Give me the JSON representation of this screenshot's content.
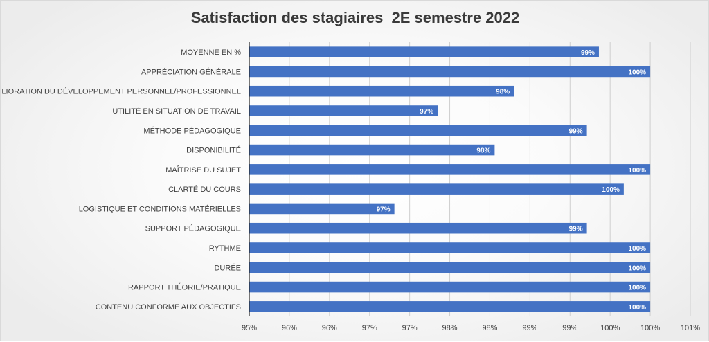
{
  "chart_data": {
    "type": "bar",
    "orientation": "horizontal",
    "title": "Satisfaction des stagiaires  2E semestre 2022",
    "xlabel": "",
    "ylabel": "",
    "xlim": [
      0.95,
      1.0
    ],
    "x_ticks": [
      0.95,
      0.955,
      0.96,
      0.965,
      0.97,
      0.975,
      0.98,
      0.985,
      0.99,
      0.995,
      1.0,
      1.005
    ],
    "x_tick_labels": [
      "95%",
      "96%",
      "96%",
      "97%",
      "97%",
      "98%",
      "98%",
      "99%",
      "99%",
      "100%",
      "100%",
      "101%"
    ],
    "grid": true,
    "legend": "none",
    "bar_color": "#4472c4",
    "categories": [
      "MOYENNE EN %",
      "APPRÉCIATION GÉNÉRALE",
      "AMÉLIORATION DU DÉVELOPPEMENT PERSONNEL/PROFESSIONNEL",
      "UTILITÉ EN SITUATION DE TRAVAIL",
      "MÉTHODE PÉDAGOGIQUE",
      "DISPONIBILITÉ",
      "MAÎTRISE DU SUJET",
      "CLARTÉ DU COURS",
      "LOGISTIQUE ET CONDITIONS MATÉRIELLES",
      "SUPPORT PÉDAGOGIQUE",
      "RYTHME",
      "DURÉE",
      "RAPPORT THÉORIE/PRATIQUE",
      "CONTENU CONFORME AUX OBJECTIFS"
    ],
    "values": [
      0.9936,
      1.0,
      0.983,
      0.9735,
      0.9921,
      0.9806,
      1.0,
      0.9967,
      0.9681,
      0.9921,
      1.0,
      1.0,
      1.0,
      1.0
    ],
    "data_labels": [
      "99%",
      "100%",
      "98%",
      "97%",
      "99%",
      "98%",
      "100%",
      "100%",
      "97%",
      "99%",
      "100%",
      "100%",
      "100%",
      "100%"
    ]
  }
}
